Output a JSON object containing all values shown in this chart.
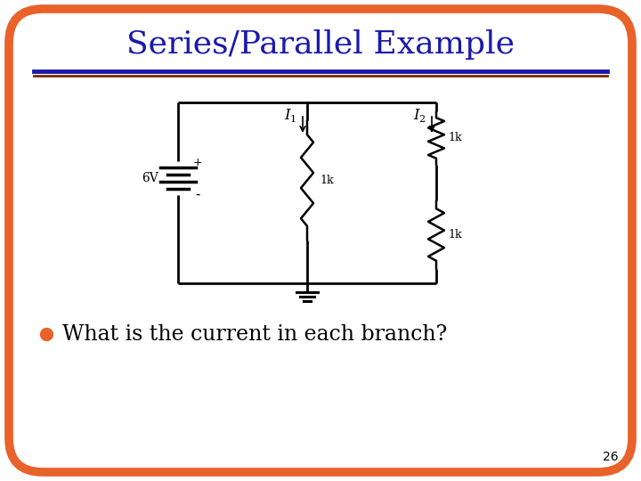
{
  "title": "Series/Parallel Example",
  "title_color": "#1a1aaa",
  "title_fontsize": 26,
  "background_color": "#ffffff",
  "border_color": "#e8622a",
  "border_linewidth": 7,
  "separator_color_top": "#1a1aaa",
  "separator_color_bottom": "#7a2800",
  "bullet_color": "#e8622a",
  "bullet_text": "What is the current in each branch?",
  "bullet_fontsize": 17,
  "text_color": "#000000",
  "page_number": "26",
  "voltage_label": "6V",
  "I1_label": "I",
  "I1_sub": "1",
  "I2_label": "I",
  "I2_sub": "2",
  "R1_label": "1k",
  "R2_label": "1k",
  "R3_label": "1k",
  "plus_label": "+",
  "minus_label": "-"
}
